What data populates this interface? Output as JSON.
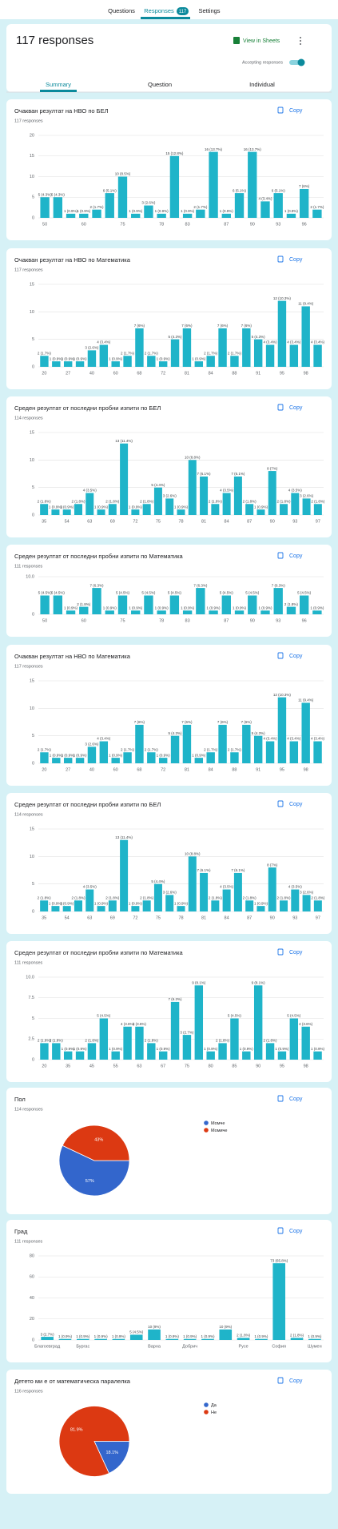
{
  "nav": {
    "tabs": [
      "Questions",
      "Responses",
      "Settings"
    ],
    "badge": "117"
  },
  "summary": {
    "title": "117 responses",
    "sheets": "View in Sheets",
    "accepting": "Accepting responses",
    "tabs": [
      "Summary",
      "Question",
      "Individual"
    ]
  },
  "copy": "Copy",
  "chart_data": [
    {
      "type": "bar",
      "title": "Очакван резултат на НВО по БЕЛ",
      "subtitle": "117 responses",
      "color": "#1fb4c9",
      "categories": [
        "50",
        null,
        null,
        "60",
        null,
        null,
        "75",
        null,
        null,
        "78",
        null,
        "83",
        null,
        null,
        "87",
        null,
        "90",
        null,
        "93",
        null,
        "96",
        null
      ],
      "values": [
        5,
        5,
        1,
        1,
        2,
        6,
        10,
        1,
        3,
        1,
        15,
        1,
        2,
        16,
        1,
        6,
        16,
        4,
        6,
        1,
        7,
        2
      ],
      "value_labels": [
        "5 (4.3%)",
        "5 (4.3%)",
        "1 (0.9%)",
        "1 (0.9%)",
        "2 (1.7%)",
        "6 (5.1%)",
        "10 (8.5%)",
        "1 (0.9%)",
        "3 (2.6%)",
        "1 (0.9%)",
        "15 (12.8%)",
        "1 (0.9%)",
        "2 (1.7%)",
        "16 (13.7%)",
        "1 (0.9%)",
        "6 (5.1%)",
        "16 (13.7%)",
        "4 (3.4%)",
        "6 (5.1%)",
        "1 (0.9%)",
        "7 (6%)",
        "2 (1.7%)"
      ],
      "ylim": [
        0,
        20
      ],
      "yticks": [
        0,
        5,
        10,
        15,
        20
      ],
      "grid": true
    },
    {
      "type": "bar",
      "title": "Очакван резултат на  НВО по Математика",
      "subtitle": "117 responses",
      "color": "#1fb4c9",
      "categories": [
        "20",
        null,
        "27",
        null,
        "40",
        null,
        "60",
        null,
        "68",
        null,
        "72",
        null,
        "81",
        null,
        "84",
        null,
        "88",
        null,
        "91",
        null,
        "95",
        null,
        "98",
        null
      ],
      "values": [
        2,
        1,
        1,
        1,
        3,
        4,
        1,
        2,
        7,
        2,
        1,
        5,
        7,
        1,
        2,
        7,
        2,
        7,
        5,
        4,
        12,
        4,
        11,
        4
      ],
      "value_labels": [
        "2 (1.7%)",
        "1 (0.9%)",
        "1 (0.9%)",
        "1 (0.9%)",
        "3 (2.6%)",
        "4 (3.4%)",
        "1 (0.9%)",
        "2 (1.7%)",
        "7 (6%)",
        "2 (1.7%)",
        "1 (0.9%)",
        "5 (4.3%)",
        "7 (6%)",
        "1 (0.9%)",
        "2 (1.7%)",
        "7 (6%)",
        "2 (1.7%)",
        "7 (6%)",
        "5 (4.3%)",
        "4 (3.4%)",
        "12 (10.3%)",
        "4 (3.4%)",
        "11 (9.4%)",
        "4 (3.4%)"
      ],
      "ylim": [
        0,
        15
      ],
      "yticks": [
        0,
        5,
        10,
        15
      ],
      "grid": true
    },
    {
      "type": "bar",
      "title": "Среден резултат от последни пробни изпити по БЕЛ",
      "subtitle": "114 responses",
      "color": "#1fb4c9",
      "categories": [
        "35",
        null,
        "54",
        null,
        "63",
        null,
        "69",
        null,
        "72",
        null,
        "75",
        null,
        "78",
        null,
        "81",
        null,
        "84",
        null,
        "87",
        null,
        "90",
        null,
        "93",
        null,
        "97"
      ],
      "values": [
        2,
        1,
        1,
        2,
        4,
        1,
        2,
        13,
        1,
        2,
        5,
        3,
        1,
        10,
        7,
        2,
        4,
        7,
        2,
        1,
        8,
        2,
        4,
        3,
        2
      ],
      "value_labels": [
        "2 (1.8%)",
        "1 (0.9%)",
        "1 (0.9%)",
        "2 (1.8%)",
        "4 (3.5%)",
        "1 (0.9%)",
        "2 (1.8%)",
        "13 (11.4%)",
        "1 (0.9%)",
        "2 (1.8%)",
        "5 (4.4%)",
        "3 (2.6%)",
        "1 (0.9%)",
        "10 (8.8%)",
        "7 (6.1%)",
        "2 (1.8%)",
        "4 (3.5%)",
        "7 (6.1%)",
        "2 (1.8%)",
        "1 (0.9%)",
        "8 (7%)",
        "2 (1.8%)",
        "4 (3.5%)",
        "3 (2.6%)",
        "2 (1.8%)"
      ],
      "ylim": [
        0,
        15
      ],
      "yticks": [
        0,
        5,
        10,
        15
      ],
      "grid": true
    },
    {
      "type": "bar",
      "title": "Среден резултат от последни пробни изпити по Математика",
      "subtitle": "111 responses",
      "color": "#1fb4c9",
      "categories": [
        "50",
        null,
        null,
        "60",
        null,
        null,
        "75",
        null,
        null,
        "78",
        null,
        "83",
        null,
        null,
        "87",
        null,
        "90",
        null,
        "93",
        null,
        "96",
        null
      ],
      "values": [
        5,
        5,
        1,
        2,
        7,
        1,
        5,
        1,
        5,
        1,
        5,
        1,
        7,
        1,
        5,
        1,
        5,
        1,
        7,
        2,
        5,
        1
      ],
      "value_labels": [
        "5 (4.5%)",
        "5 (4.5%)",
        "1 (0.9%)",
        "2 (1.8%)",
        "7 (6.3%)",
        "1 (0.9%)",
        "5 (4.5%)",
        "1 (0.9%)",
        "5 (4.5%)",
        "1 (0.9%)",
        "5 (4.5%)",
        "1 (0.9%)",
        "7 (6.3%)",
        "1 (0.9%)",
        "5 (4.5%)",
        "1 (0.9%)",
        "5 (4.5%)",
        "1 (0.9%)",
        "7 (6.3%)",
        "2 (1.8%)",
        "5 (4.5%)",
        "1 (0.9%)"
      ],
      "ylim": [
        0,
        10
      ],
      "yticks": [
        0,
        {
          "value": 10,
          "label": "10.0"
        }
      ],
      "grid": true
    },
    {
      "type": "bar",
      "title": "Очакван резултат на  НВО по Математика",
      "subtitle": "117 responses",
      "color": "#1fb4c9",
      "categories": [
        "20",
        null,
        "27",
        null,
        "40",
        null,
        "60",
        null,
        "68",
        null,
        "72",
        null,
        "81",
        null,
        "84",
        null,
        "88",
        null,
        "91",
        null,
        "95",
        null,
        "98",
        null
      ],
      "values": [
        2,
        1,
        1,
        1,
        3,
        4,
        1,
        2,
        7,
        2,
        1,
        5,
        7,
        1,
        2,
        7,
        2,
        7,
        5,
        4,
        12,
        4,
        11,
        4
      ],
      "value_labels": [
        "2 (1.7%)",
        "1 (0.9%)",
        "1 (0.9%)",
        "1 (0.9%)",
        "3 (2.6%)",
        "4 (3.4%)",
        "1 (0.9%)",
        "2 (1.7%)",
        "7 (6%)",
        "2 (1.7%)",
        "1 (0.9%)",
        "5 (4.3%)",
        "7 (6%)",
        "1 (0.9%)",
        "2 (1.7%)",
        "7 (6%)",
        "2 (1.7%)",
        "7 (6%)",
        "5 (4.3%)",
        "4 (3.4%)",
        "12 (10.3%)",
        "4 (3.4%)",
        "11 (9.4%)",
        "4 (3.4%)"
      ],
      "ylim": [
        0,
        15
      ],
      "yticks": [
        0,
        5,
        10,
        15
      ],
      "grid": true
    },
    {
      "type": "bar",
      "title": "Среден резултат от последни пробни изпити по БЕЛ",
      "subtitle": "114 responses",
      "color": "#1fb4c9",
      "categories": [
        "35",
        null,
        "54",
        null,
        "63",
        null,
        "69",
        null,
        "72",
        null,
        "75",
        null,
        "78",
        null,
        "81",
        null,
        "84",
        null,
        "87",
        null,
        "90",
        null,
        "93",
        null,
        "97"
      ],
      "values": [
        2,
        1,
        1,
        2,
        4,
        1,
        2,
        13,
        1,
        2,
        5,
        3,
        1,
        10,
        7,
        2,
        4,
        7,
        2,
        1,
        8,
        2,
        4,
        3,
        2
      ],
      "value_labels": [
        "2 (1.8%)",
        "1 (0.9%)",
        "1 (0.9%)",
        "2 (1.8%)",
        "4 (3.5%)",
        "1 (0.9%)",
        "2 (1.8%)",
        "13 (11.4%)",
        "1 (0.9%)",
        "2 (1.8%)",
        "5 (4.4%)",
        "3 (2.6%)",
        "1 (0.9%)",
        "10 (8.8%)",
        "7 (6.1%)",
        "2 (1.8%)",
        "4 (3.5%)",
        "7 (6.1%)",
        "2 (1.8%)",
        "1 (0.9%)",
        "8 (7%)",
        "2 (1.8%)",
        "4 (3.5%)",
        "3 (2.6%)",
        "2 (1.8%)"
      ],
      "ylim": [
        0,
        15
      ],
      "yticks": [
        0,
        5,
        10,
        15
      ],
      "grid": true
    },
    {
      "type": "bar",
      "title": "Среден резултат от последни пробни изпити по Математика",
      "subtitle": "111 responses",
      "color": "#1fb4c9",
      "categories": [
        "20",
        null,
        "35",
        null,
        "45",
        null,
        "55",
        null,
        "63",
        null,
        "67",
        null,
        "75",
        null,
        "80",
        null,
        "85",
        null,
        "90",
        null,
        "95",
        null,
        "98",
        null
      ],
      "values": [
        2,
        2,
        1,
        1,
        2,
        5,
        1,
        4,
        4,
        2,
        1,
        7,
        3,
        9,
        1,
        2,
        5,
        1,
        9,
        2,
        1,
        5,
        4,
        1
      ],
      "value_labels": [
        "2 (1.8%)",
        "2 (1.8%)",
        "1 (0.9%)",
        "1 (0.9%)",
        "2 (1.8%)",
        "5 (4.5%)",
        "1 (0.9%)",
        "4 (3.6%)",
        "4 (3.6%)",
        "2 (1.8%)",
        "1 (0.9%)",
        "7 (6.3%)",
        "3 (2.7%)",
        "9 (8.1%)",
        "1 (0.9%)",
        "2 (1.8%)",
        "5 (4.5%)",
        "1 (0.9%)",
        "9 (8.1%)",
        "2 (1.8%)",
        "1 (0.9%)",
        "5 (4.5%)",
        "4 (3.6%)",
        "1 (0.9%)"
      ],
      "ylim": [
        0,
        10
      ],
      "yticks": [
        0,
        2.5,
        5,
        7.5,
        {
          "value": 10,
          "label": "10.0"
        }
      ],
      "grid": true
    },
    {
      "type": "pie",
      "title": "Пол",
      "subtitle": "114 responses",
      "categories": [
        "Момче",
        "Момиче"
      ],
      "values": [
        57,
        43
      ],
      "value_labels": [
        "57%",
        "43%"
      ],
      "colors": [
        "#3366cc",
        "#dc3912"
      ]
    },
    {
      "type": "bar",
      "title": "Град",
      "subtitle": "111 responses",
      "color": "#1fb4c9",
      "categories": [
        "Благоевград",
        null,
        "Бургас",
        null,
        null,
        null,
        "Варна",
        null,
        "Добрич",
        null,
        null,
        "Русе",
        null,
        "София",
        null,
        "Шумен"
      ],
      "values": [
        3,
        1,
        1,
        1,
        1,
        5,
        10,
        1,
        1,
        1,
        10,
        2,
        1,
        73,
        2,
        1
      ],
      "value_labels": [
        "3 (2.7%)",
        "1 (0.9%)",
        "1 (0.9%)",
        "1 (0.9%)",
        "1 (0.9%)",
        "5 (4.5%)",
        "10 (9%)",
        "1 (0.9%)",
        "1 (0.9%)",
        "1 (0.9%)",
        "10 (9%)",
        "2 (1.8%)",
        "1 (0.9%)",
        "73 (65.8%)",
        "2 (1.8%)",
        "1 (0.9%)"
      ],
      "ylim": [
        0,
        80
      ],
      "yticks": [
        0,
        20,
        40,
        60,
        80
      ],
      "grid": true
    },
    {
      "type": "pie",
      "title": "Детето ми е от математическа паралелка",
      "subtitle": "116 responses",
      "categories": [
        "Да",
        "Не"
      ],
      "values": [
        18.1,
        81.9
      ],
      "value_labels": [
        "18.1%",
        "81.9%"
      ],
      "colors": [
        "#3366cc",
        "#dc3912"
      ]
    }
  ]
}
